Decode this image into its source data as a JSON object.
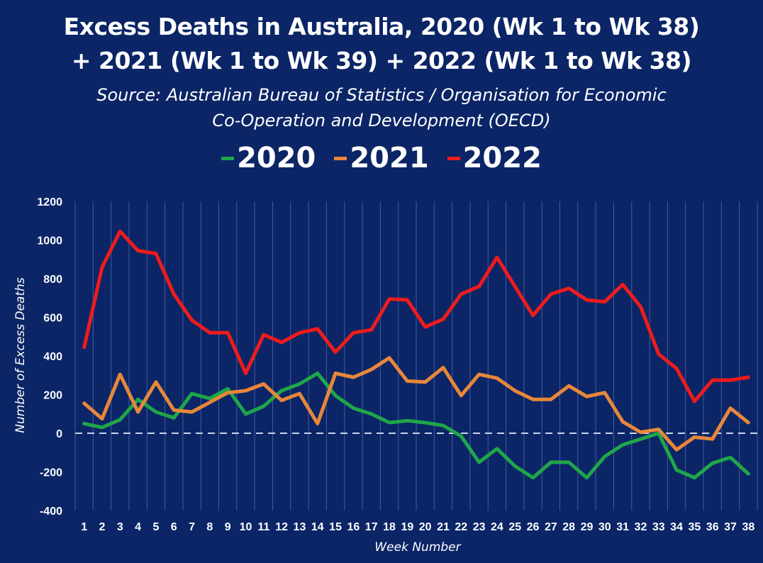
{
  "chart_data": {
    "type": "line",
    "title_line1": "Excess Deaths in Australia, 2020 (Wk 1 to Wk 38)",
    "title_line2": "+ 2021 (Wk 1 to Wk 39) + 2022 (Wk 1 to Wk 38)",
    "subtitle_line1": "Source: Australian Bureau of Statistics / Organisation for Economic",
    "subtitle_line2": "Co-Operation and Development (OECD)",
    "xlabel": "Week Number",
    "ylabel": "Number of Excess Deaths",
    "ylim": [
      -400,
      1200
    ],
    "yticks": [
      -400,
      -200,
      0,
      200,
      400,
      600,
      800,
      1000,
      1200
    ],
    "x": [
      1,
      2,
      3,
      4,
      5,
      6,
      7,
      8,
      9,
      10,
      11,
      12,
      13,
      14,
      15,
      16,
      17,
      18,
      19,
      20,
      21,
      22,
      23,
      24,
      25,
      26,
      27,
      28,
      29,
      30,
      31,
      32,
      33,
      34,
      35,
      36,
      37,
      38
    ],
    "grid": "vertical",
    "zero_line": "dashed",
    "legend_position": "top",
    "series": [
      {
        "name": "2020",
        "color": "#1fa64a",
        "values": [
          50,
          30,
          70,
          175,
          110,
          80,
          205,
          180,
          230,
          100,
          140,
          220,
          255,
          310,
          195,
          130,
          100,
          55,
          65,
          55,
          40,
          -15,
          -150,
          -80,
          -170,
          -230,
          -150,
          -150,
          -230,
          -120,
          -60,
          -30,
          0,
          -190,
          -230,
          -155,
          -125,
          -210
        ]
      },
      {
        "name": "2021",
        "color": "#e8873a",
        "values": [
          155,
          75,
          305,
          110,
          265,
          120,
          110,
          160,
          210,
          220,
          255,
          170,
          205,
          50,
          310,
          290,
          330,
          390,
          270,
          265,
          340,
          195,
          305,
          285,
          220,
          175,
          175,
          245,
          190,
          210,
          60,
          5,
          20,
          -85,
          -20,
          -30,
          130,
          55
        ]
      },
      {
        "name": "2022",
        "color": "#ee1c1c",
        "values": [
          445,
          860,
          1045,
          945,
          930,
          720,
          585,
          520,
          520,
          310,
          510,
          470,
          520,
          540,
          420,
          520,
          535,
          695,
          690,
          550,
          590,
          720,
          760,
          910,
          760,
          610,
          720,
          750,
          690,
          680,
          770,
          655,
          410,
          335,
          165,
          275,
          275,
          290
        ]
      }
    ]
  }
}
